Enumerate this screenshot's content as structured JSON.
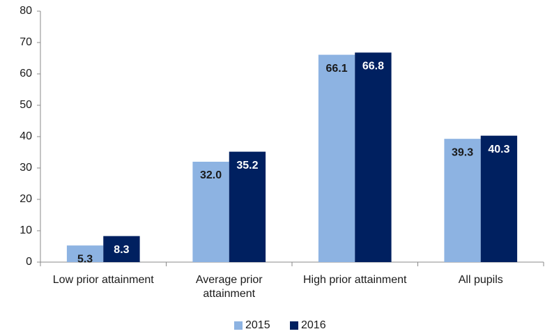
{
  "chart_data": {
    "type": "bar",
    "categories": [
      "Low prior attainment",
      "Average prior attainment",
      "High prior attainment",
      "All pupils"
    ],
    "series": [
      {
        "name": "2015",
        "color": "#8db3e2",
        "values": [
          5.3,
          32.0,
          66.1,
          39.3
        ],
        "value_labels": [
          "5.3",
          "32.0",
          "66.1",
          "39.3"
        ],
        "label_color": "#1a1a1a"
      },
      {
        "name": "2016",
        "color": "#002060",
        "values": [
          8.3,
          35.2,
          66.8,
          40.3
        ],
        "value_labels": [
          "8.3",
          "35.2",
          "66.8",
          "40.3"
        ],
        "label_color": "#ffffff"
      }
    ],
    "ylim": [
      0,
      80
    ],
    "yticks": [
      0,
      10,
      20,
      30,
      40,
      50,
      60,
      70,
      80
    ],
    "grid": false,
    "legend": "bottom"
  }
}
